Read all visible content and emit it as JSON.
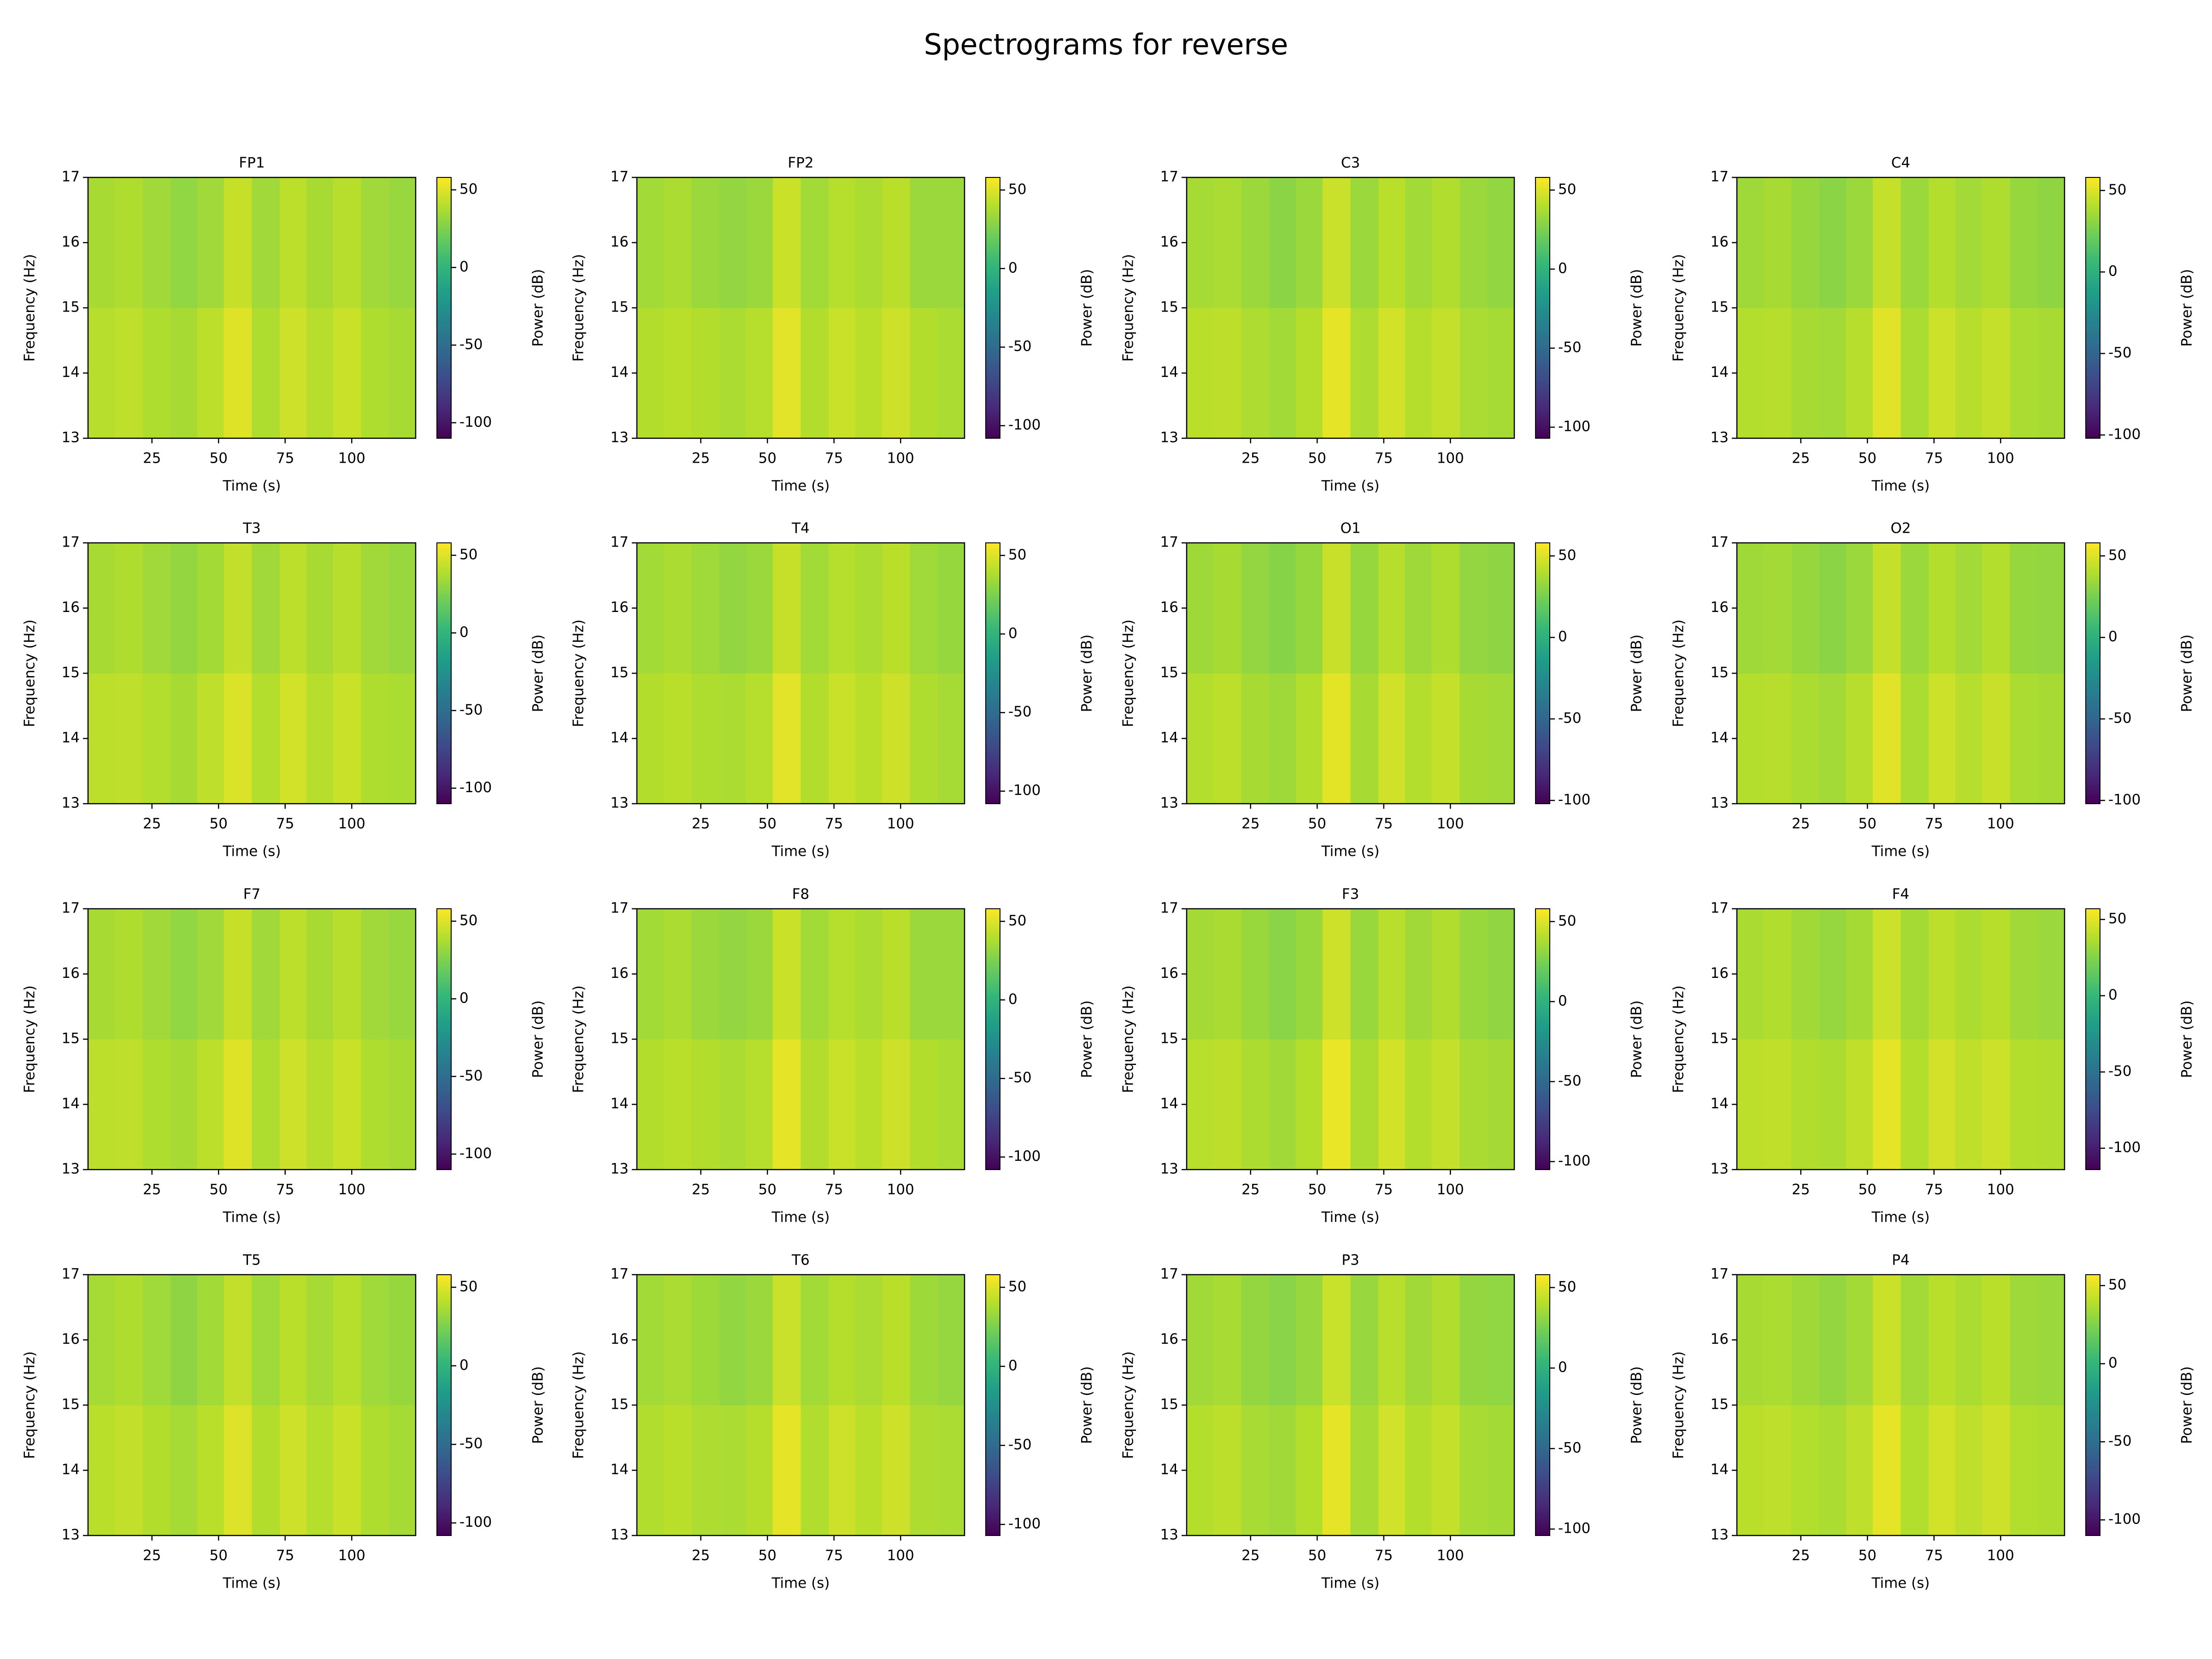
{
  "title": "Spectrograms for reverse",
  "chart_data": [
    {
      "type": "heatmap",
      "title": "FP1",
      "x_label": "Time (s)",
      "y_label": "Frequency (Hz)",
      "colorbar_label": "Power (dB)",
      "colormap": "viridis",
      "x": [
        6,
        16,
        27,
        37,
        47,
        57,
        68,
        78,
        88,
        98,
        109,
        119
      ],
      "y": [
        14,
        16
      ],
      "z": [
        [
          40,
          42,
          38,
          36,
          41,
          50,
          38,
          46,
          40,
          45,
          38,
          36
        ],
        [
          36,
          38,
          34,
          30,
          34,
          44,
          34,
          41,
          36,
          40,
          34,
          32
        ]
      ],
      "xlim": [
        1,
        124
      ],
      "xticks": [
        25,
        50,
        75,
        100
      ],
      "ylim": [
        13,
        17
      ],
      "yticks": [
        13,
        14,
        15,
        16,
        17
      ],
      "clim": [
        -110,
        58
      ],
      "cticks": [
        -100,
        -50,
        0,
        50
      ]
    },
    {
      "type": "heatmap",
      "title": "FP2",
      "x_label": "Time (s)",
      "y_label": "Frequency (Hz)",
      "colorbar_label": "Power (dB)",
      "colormap": "viridis",
      "x": [
        6,
        16,
        27,
        37,
        47,
        57,
        68,
        78,
        88,
        98,
        109,
        119
      ],
      "y": [
        14,
        16
      ],
      "z": [
        [
          39,
          41,
          39,
          37,
          40,
          51,
          39,
          45,
          41,
          46,
          39,
          37
        ],
        [
          35,
          37,
          33,
          31,
          33,
          45,
          35,
          40,
          37,
          41,
          33,
          33
        ]
      ],
      "xlim": [
        1,
        124
      ],
      "xticks": [
        25,
        50,
        75,
        100
      ],
      "ylim": [
        13,
        17
      ],
      "yticks": [
        13,
        14,
        15,
        16,
        17
      ],
      "clim": [
        -108,
        58
      ],
      "cticks": [
        -100,
        -50,
        0,
        50
      ]
    },
    {
      "type": "heatmap",
      "title": "C3",
      "x_label": "Time (s)",
      "y_label": "Frequency (Hz)",
      "colorbar_label": "Power (dB)",
      "colormap": "viridis",
      "x": [
        6,
        16,
        27,
        37,
        47,
        57,
        68,
        78,
        88,
        98,
        109,
        119
      ],
      "y": [
        14,
        16
      ],
      "z": [
        [
          41,
          42,
          38,
          35,
          40,
          52,
          38,
          47,
          40,
          44,
          37,
          36
        ],
        [
          36,
          37,
          33,
          29,
          33,
          45,
          33,
          41,
          35,
          39,
          33,
          31
        ]
      ],
      "xlim": [
        1,
        124
      ],
      "xticks": [
        25,
        50,
        75,
        100
      ],
      "ylim": [
        13,
        17
      ],
      "yticks": [
        13,
        14,
        15,
        16,
        17
      ],
      "clim": [
        -107,
        58
      ],
      "cticks": [
        -100,
        -50,
        0,
        50
      ]
    },
    {
      "type": "heatmap",
      "title": "C4",
      "x_label": "Time (s)",
      "y_label": "Frequency (Hz)",
      "colorbar_label": "Power (dB)",
      "colormap": "viridis",
      "x": [
        6,
        16,
        27,
        37,
        47,
        57,
        68,
        78,
        88,
        98,
        109,
        119
      ],
      "y": [
        14,
        16
      ],
      "z": [
        [
          40,
          41,
          37,
          36,
          41,
          51,
          38,
          46,
          41,
          44,
          38,
          37
        ],
        [
          35,
          37,
          33,
          30,
          34,
          44,
          34,
          40,
          36,
          39,
          33,
          31
        ]
      ],
      "xlim": [
        1,
        124
      ],
      "xticks": [
        25,
        50,
        75,
        100
      ],
      "ylim": [
        13,
        17
      ],
      "yticks": [
        13,
        14,
        15,
        16,
        17
      ],
      "clim": [
        -102,
        58
      ],
      "cticks": [
        -100,
        -50,
        0,
        50
      ]
    },
    {
      "type": "heatmap",
      "title": "T3",
      "x_label": "Time (s)",
      "y_label": "Frequency (Hz)",
      "colorbar_label": "Power (dB)",
      "colormap": "viridis",
      "x": [
        6,
        16,
        27,
        37,
        47,
        57,
        68,
        78,
        88,
        98,
        109,
        119
      ],
      "y": [
        14,
        16
      ],
      "z": [
        [
          41,
          42,
          39,
          36,
          42,
          49,
          39,
          47,
          40,
          45,
          38,
          37
        ],
        [
          36,
          38,
          34,
          31,
          35,
          43,
          34,
          41,
          36,
          40,
          34,
          32
        ]
      ],
      "xlim": [
        1,
        124
      ],
      "xticks": [
        25,
        50,
        75,
        100
      ],
      "ylim": [
        13,
        17
      ],
      "yticks": [
        13,
        14,
        15,
        16,
        17
      ],
      "clim": [
        -110,
        58
      ],
      "cticks": [
        -100,
        -50,
        0,
        50
      ]
    },
    {
      "type": "heatmap",
      "title": "T4",
      "x_label": "Time (s)",
      "y_label": "Frequency (Hz)",
      "colorbar_label": "Power (dB)",
      "colormap": "viridis",
      "x": [
        6,
        16,
        27,
        37,
        47,
        57,
        68,
        78,
        88,
        98,
        109,
        119
      ],
      "y": [
        14,
        16
      ],
      "z": [
        [
          39,
          41,
          38,
          37,
          40,
          51,
          39,
          45,
          41,
          46,
          38,
          36
        ],
        [
          35,
          37,
          34,
          31,
          33,
          44,
          35,
          40,
          37,
          41,
          34,
          32
        ]
      ],
      "xlim": [
        1,
        124
      ],
      "xticks": [
        25,
        50,
        75,
        100
      ],
      "ylim": [
        13,
        17
      ],
      "yticks": [
        13,
        14,
        15,
        16,
        17
      ],
      "clim": [
        -108,
        58
      ],
      "cticks": [
        -100,
        -50,
        0,
        50
      ]
    },
    {
      "type": "heatmap",
      "title": "O1",
      "x_label": "Time (s)",
      "y_label": "Frequency (Hz)",
      "colorbar_label": "Power (dB)",
      "colormap": "viridis",
      "x": [
        6,
        16,
        27,
        37,
        47,
        57,
        68,
        78,
        88,
        98,
        109,
        119
      ],
      "y": [
        14,
        16
      ],
      "z": [
        [
          40,
          42,
          37,
          35,
          40,
          52,
          37,
          47,
          40,
          44,
          37,
          36
        ],
        [
          35,
          37,
          32,
          29,
          33,
          45,
          33,
          41,
          35,
          39,
          32,
          31
        ]
      ],
      "xlim": [
        1,
        124
      ],
      "xticks": [
        25,
        50,
        75,
        100
      ],
      "ylim": [
        13,
        17
      ],
      "yticks": [
        13,
        14,
        15,
        16,
        17
      ],
      "clim": [
        -102,
        58
      ],
      "cticks": [
        -100,
        -50,
        0,
        50
      ]
    },
    {
      "type": "heatmap",
      "title": "O2",
      "x_label": "Time (s)",
      "y_label": "Frequency (Hz)",
      "colorbar_label": "Power (dB)",
      "colormap": "viridis",
      "x": [
        6,
        16,
        27,
        37,
        47,
        57,
        68,
        78,
        88,
        98,
        109,
        119
      ],
      "y": [
        14,
        16
      ],
      "z": [
        [
          40,
          41,
          38,
          36,
          41,
          51,
          38,
          46,
          41,
          45,
          38,
          37
        ],
        [
          35,
          36,
          33,
          30,
          34,
          44,
          34,
          40,
          36,
          40,
          33,
          32
        ]
      ],
      "xlim": [
        1,
        124
      ],
      "xticks": [
        25,
        50,
        75,
        100
      ],
      "ylim": [
        13,
        17
      ],
      "yticks": [
        13,
        14,
        15,
        16,
        17
      ],
      "clim": [
        -102,
        58
      ],
      "cticks": [
        -100,
        -50,
        0,
        50
      ]
    },
    {
      "type": "heatmap",
      "title": "F7",
      "x_label": "Time (s)",
      "y_label": "Frequency (Hz)",
      "colorbar_label": "Power (dB)",
      "colormap": "viridis",
      "x": [
        6,
        16,
        27,
        37,
        47,
        57,
        68,
        78,
        88,
        98,
        109,
        119
      ],
      "y": [
        14,
        16
      ],
      "z": [
        [
          41,
          42,
          38,
          36,
          41,
          50,
          38,
          46,
          40,
          45,
          38,
          36
        ],
        [
          36,
          38,
          34,
          30,
          34,
          44,
          34,
          41,
          36,
          40,
          34,
          32
        ]
      ],
      "xlim": [
        1,
        124
      ],
      "xticks": [
        25,
        50,
        75,
        100
      ],
      "ylim": [
        13,
        17
      ],
      "yticks": [
        13,
        14,
        15,
        16,
        17
      ],
      "clim": [
        -110,
        58
      ],
      "cticks": [
        -100,
        -50,
        0,
        50
      ]
    },
    {
      "type": "heatmap",
      "title": "F8",
      "x_label": "Time (s)",
      "y_label": "Frequency (Hz)",
      "colorbar_label": "Power (dB)",
      "colormap": "viridis",
      "x": [
        6,
        16,
        27,
        37,
        47,
        57,
        68,
        78,
        88,
        98,
        109,
        119
      ],
      "y": [
        14,
        16
      ],
      "z": [
        [
          39,
          41,
          39,
          37,
          40,
          52,
          39,
          45,
          41,
          46,
          39,
          37
        ],
        [
          35,
          37,
          33,
          31,
          33,
          45,
          35,
          40,
          37,
          41,
          33,
          33
        ]
      ],
      "xlim": [
        1,
        124
      ],
      "xticks": [
        25,
        50,
        75,
        100
      ],
      "ylim": [
        13,
        17
      ],
      "yticks": [
        13,
        14,
        15,
        16,
        17
      ],
      "clim": [
        -108,
        58
      ],
      "cticks": [
        -100,
        -50,
        0,
        50
      ]
    },
    {
      "type": "heatmap",
      "title": "F3",
      "x_label": "Time (s)",
      "y_label": "Frequency (Hz)",
      "colorbar_label": "Power (dB)",
      "colormap": "viridis",
      "x": [
        6,
        16,
        27,
        37,
        47,
        57,
        68,
        78,
        88,
        98,
        109,
        119
      ],
      "y": [
        14,
        16
      ],
      "z": [
        [
          41,
          42,
          38,
          35,
          40,
          53,
          38,
          47,
          40,
          44,
          37,
          36
        ],
        [
          36,
          37,
          33,
          29,
          33,
          46,
          33,
          41,
          35,
          39,
          33,
          31
        ]
      ],
      "xlim": [
        1,
        124
      ],
      "xticks": [
        25,
        50,
        75,
        100
      ],
      "ylim": [
        13,
        17
      ],
      "yticks": [
        13,
        14,
        15,
        16,
        17
      ],
      "clim": [
        -105,
        58
      ],
      "cticks": [
        -100,
        -50,
        0,
        50
      ]
    },
    {
      "type": "heatmap",
      "title": "F4",
      "x_label": "Time (s)",
      "y_label": "Frequency (Hz)",
      "colorbar_label": "Power (dB)",
      "colormap": "viridis",
      "x": [
        6,
        16,
        27,
        37,
        47,
        57,
        68,
        78,
        88,
        98,
        109,
        119
      ],
      "y": [
        14,
        16
      ],
      "z": [
        [
          40,
          41,
          37,
          36,
          41,
          51,
          38,
          46,
          41,
          44,
          38,
          37
        ],
        [
          35,
          37,
          33,
          30,
          34,
          44,
          34,
          40,
          36,
          39,
          33,
          31
        ]
      ],
      "xlim": [
        1,
        124
      ],
      "xticks": [
        25,
        50,
        75,
        100
      ],
      "ylim": [
        13,
        17
      ],
      "yticks": [
        13,
        14,
        15,
        16,
        17
      ],
      "clim": [
        -114,
        57
      ],
      "cticks": [
        -100,
        -50,
        0,
        50
      ]
    },
    {
      "type": "heatmap",
      "title": "T5",
      "x_label": "Time (s)",
      "y_label": "Frequency (Hz)",
      "colorbar_label": "Power (dB)",
      "colormap": "viridis",
      "x": [
        6,
        16,
        27,
        37,
        47,
        57,
        68,
        78,
        88,
        98,
        109,
        119
      ],
      "y": [
        14,
        16
      ],
      "z": [
        [
          41,
          43,
          39,
          36,
          41,
          50,
          39,
          46,
          40,
          45,
          38,
          36
        ],
        [
          36,
          38,
          34,
          30,
          35,
          43,
          34,
          41,
          36,
          40,
          34,
          32
        ]
      ],
      "xlim": [
        1,
        124
      ],
      "xticks": [
        25,
        50,
        75,
        100
      ],
      "ylim": [
        13,
        17
      ],
      "yticks": [
        13,
        14,
        15,
        16,
        17
      ],
      "clim": [
        -108,
        58
      ],
      "cticks": [
        -100,
        -50,
        0,
        50
      ]
    },
    {
      "type": "heatmap",
      "title": "T6",
      "x_label": "Time (s)",
      "y_label": "Frequency (Hz)",
      "colorbar_label": "Power (dB)",
      "colormap": "viridis",
      "x": [
        6,
        16,
        27,
        37,
        47,
        57,
        68,
        78,
        88,
        98,
        109,
        119
      ],
      "y": [
        14,
        16
      ],
      "z": [
        [
          39,
          41,
          38,
          37,
          40,
          52,
          39,
          46,
          41,
          46,
          38,
          37
        ],
        [
          35,
          37,
          34,
          31,
          33,
          45,
          35,
          40,
          37,
          41,
          34,
          32
        ]
      ],
      "xlim": [
        1,
        124
      ],
      "xticks": [
        25,
        50,
        75,
        100
      ],
      "ylim": [
        13,
        17
      ],
      "yticks": [
        13,
        14,
        15,
        16,
        17
      ],
      "clim": [
        -107,
        58
      ],
      "cticks": [
        -100,
        -50,
        0,
        50
      ]
    },
    {
      "type": "heatmap",
      "title": "P3",
      "x_label": "Time (s)",
      "y_label": "Frequency (Hz)",
      "colorbar_label": "Power (dB)",
      "colormap": "viridis",
      "x": [
        6,
        16,
        27,
        37,
        47,
        57,
        68,
        78,
        88,
        98,
        109,
        119
      ],
      "y": [
        14,
        16
      ],
      "z": [
        [
          40,
          42,
          37,
          35,
          40,
          52,
          37,
          47,
          40,
          44,
          37,
          36
        ],
        [
          35,
          37,
          32,
          29,
          33,
          45,
          33,
          41,
          35,
          39,
          32,
          31
        ]
      ],
      "xlim": [
        1,
        124
      ],
      "xticks": [
        25,
        50,
        75,
        100
      ],
      "ylim": [
        13,
        17
      ],
      "yticks": [
        13,
        14,
        15,
        16,
        17
      ],
      "clim": [
        -104,
        58
      ],
      "cticks": [
        -100,
        -50,
        0,
        50
      ]
    },
    {
      "type": "heatmap",
      "title": "P4",
      "x_label": "Time (s)",
      "y_label": "Frequency (Hz)",
      "colorbar_label": "Power (dB)",
      "colormap": "viridis",
      "x": [
        6,
        16,
        27,
        37,
        47,
        57,
        68,
        78,
        88,
        98,
        109,
        119
      ],
      "y": [
        14,
        16
      ],
      "z": [
        [
          40,
          41,
          38,
          36,
          41,
          51,
          38,
          46,
          41,
          45,
          38,
          37
        ],
        [
          35,
          36,
          33,
          30,
          34,
          44,
          34,
          40,
          36,
          40,
          33,
          32
        ]
      ],
      "xlim": [
        1,
        124
      ],
      "xticks": [
        25,
        50,
        75,
        100
      ],
      "ylim": [
        13,
        17
      ],
      "yticks": [
        13,
        14,
        15,
        16,
        17
      ],
      "clim": [
        -110,
        57
      ],
      "cticks": [
        -100,
        -50,
        0,
        50
      ]
    }
  ]
}
